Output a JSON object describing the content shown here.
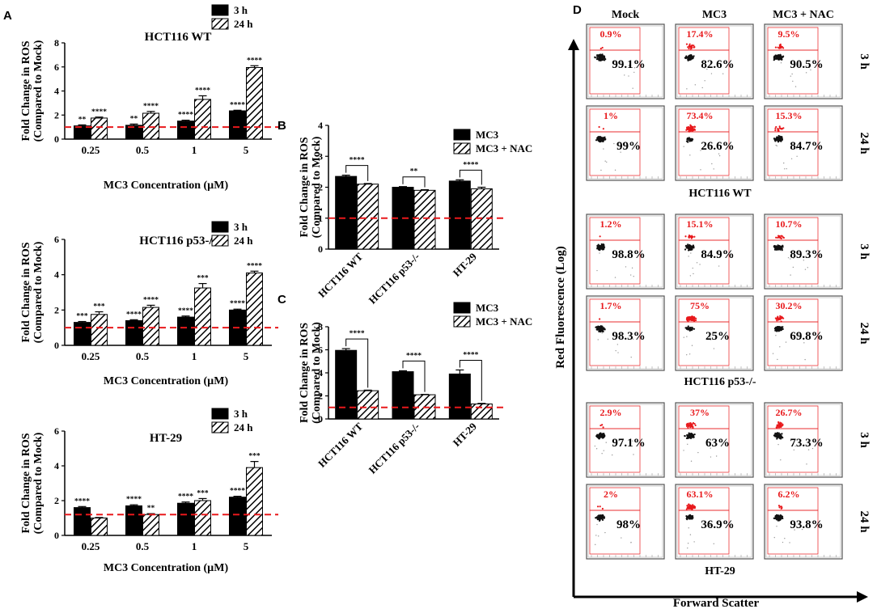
{
  "colors": {
    "red": "#e8191c",
    "dot": "#111111",
    "gate": "#e8191c"
  },
  "panel_labels": {
    "a": "A",
    "b": "B",
    "c": "C",
    "d": "D"
  },
  "chart_data": [
    {
      "id": "A1",
      "type": "bar",
      "title": "HCT116 WT",
      "ylabel": [
        "Fold Change in ROS",
        "(Compared to Mock)"
      ],
      "xlabel": "MC3 Concentration (µM)",
      "categories": [
        "0.25",
        "0.5",
        "1",
        "5"
      ],
      "ylim": [
        0,
        8
      ],
      "yticks": [
        0,
        2,
        4,
        6,
        8
      ],
      "reference_line": 1,
      "series": [
        {
          "name": "3 h",
          "pattern": "solid",
          "values": [
            1.1,
            1.15,
            1.5,
            2.35
          ],
          "errors": [
            0.08,
            0.1,
            0.07,
            0.05
          ],
          "stars": [
            "**",
            "**",
            "****",
            "****"
          ]
        },
        {
          "name": "24 h",
          "pattern": "hatch",
          "values": [
            1.75,
            2.15,
            3.3,
            5.95
          ],
          "errors": [
            0.08,
            0.15,
            0.3,
            0.15
          ],
          "stars": [
            "****",
            "****",
            "****",
            "****"
          ]
        }
      ]
    },
    {
      "id": "A2",
      "type": "bar",
      "title": "HCT116 p53-/-",
      "ylabel": [
        "Fold Change in ROS",
        "(Compared to Mock)"
      ],
      "xlabel": "MC3 Concentration (µM)",
      "categories": [
        "0.25",
        "0.5",
        "1",
        "5"
      ],
      "ylim": [
        0,
        6
      ],
      "yticks": [
        0,
        2,
        4,
        6
      ],
      "reference_line": 1,
      "series": [
        {
          "name": "3 h",
          "pattern": "solid",
          "values": [
            1.3,
            1.4,
            1.6,
            2.0
          ],
          "errors": [
            0.05,
            0.05,
            0.06,
            0.05
          ],
          "stars": [
            "***",
            "****",
            "****",
            "****"
          ]
        },
        {
          "name": "24 h",
          "pattern": "hatch",
          "values": [
            1.75,
            2.15,
            3.25,
            4.1
          ],
          "errors": [
            0.15,
            0.12,
            0.25,
            0.1
          ],
          "stars": [
            "***",
            "****",
            "***",
            "****"
          ]
        }
      ]
    },
    {
      "id": "A3",
      "type": "bar",
      "title": "HT-29",
      "ylabel": [
        "Fold Change in ROS",
        "(Compared to Mock)"
      ],
      "xlabel": "MC3 Concentration (µM)",
      "categories": [
        "0.25",
        "0.5",
        "1",
        "5"
      ],
      "ylim": [
        0,
        6
      ],
      "yticks": [
        0,
        2,
        4,
        6
      ],
      "reference_line": 1.2,
      "series": [
        {
          "name": "3 h",
          "pattern": "solid",
          "values": [
            1.6,
            1.7,
            1.85,
            2.2
          ],
          "errors": [
            0.06,
            0.06,
            0.07,
            0.05
          ],
          "stars": [
            "****",
            "****",
            "****",
            "****"
          ]
        },
        {
          "name": "24 h",
          "pattern": "hatch",
          "values": [
            1.0,
            1.2,
            2.0,
            3.9
          ],
          "errors": [
            0.03,
            0.05,
            0.12,
            0.35
          ],
          "stars": [
            "",
            "**",
            "***",
            "***"
          ]
        }
      ]
    },
    {
      "id": "B",
      "type": "bar",
      "title": "",
      "ylabel": [
        "Fold Change in ROS",
        "(Compared to Mock)"
      ],
      "xlabel": "",
      "categories": [
        "HCT116 WT",
        "HCT116 p53-/-",
        "HT-29"
      ],
      "ylim": [
        0,
        4
      ],
      "yticks": [
        0,
        1,
        2,
        3,
        4
      ],
      "reference_line": 1,
      "series": [
        {
          "name": "MC3",
          "pattern": "solid",
          "values": [
            2.35,
            2.0,
            2.2
          ],
          "errors": [
            0.04,
            0.02,
            0.04
          ]
        },
        {
          "name": "MC3 + NAC",
          "pattern": "hatch",
          "values": [
            2.1,
            1.9,
            1.95
          ],
          "errors": [
            0.02,
            0.02,
            0.05
          ]
        }
      ],
      "brackets": [
        "****",
        "**",
        "****"
      ]
    },
    {
      "id": "C",
      "type": "bar",
      "title": "",
      "ylabel": [
        "Fold Change in ROS",
        "(Compared to Mock)"
      ],
      "xlabel": "",
      "categories": [
        "HCT116 WT",
        "HCT116 p53-/-",
        "HT-29"
      ],
      "ylim": [
        0,
        8
      ],
      "yticks": [
        0,
        2,
        4,
        6,
        8
      ],
      "reference_line": 1,
      "series": [
        {
          "name": "MC3",
          "pattern": "solid",
          "values": [
            5.95,
            4.1,
            3.9
          ],
          "errors": [
            0.15,
            0.08,
            0.35
          ]
        },
        {
          "name": "MC3 + NAC",
          "pattern": "hatch",
          "values": [
            2.45,
            2.1,
            1.3
          ],
          "errors": [
            0.05,
            0.03,
            0.05
          ]
        }
      ],
      "brackets": [
        "****",
        "****",
        "****"
      ]
    }
  ],
  "flow": {
    "columns": [
      "Mock",
      "MC3",
      "MC3 + NAC"
    ],
    "x_axis": "Forward Scatter",
    "y_axis": "Red Fluorescence (Log)",
    "groups": [
      {
        "name": "HCT116 WT",
        "rows": [
          {
            "time": "3 h",
            "cells": [
              {
                "red": "0.9%",
                "black": "99.1%"
              },
              {
                "red": "17.4%",
                "black": "82.6%"
              },
              {
                "red": "9.5%",
                "black": "90.5%"
              }
            ]
          },
          {
            "time": "24 h",
            "cells": [
              {
                "red": "1%",
                "black": "99%"
              },
              {
                "red": "73.4%",
                "black": "26.6%"
              },
              {
                "red": "15.3%",
                "black": "84.7%"
              }
            ]
          }
        ]
      },
      {
        "name": "HCT116 p53-/-",
        "rows": [
          {
            "time": "3 h",
            "cells": [
              {
                "red": "1.2%",
                "black": "98.8%"
              },
              {
                "red": "15.1%",
                "black": "84.9%"
              },
              {
                "red": "10.7%",
                "black": "89.3%"
              }
            ]
          },
          {
            "time": "24 h",
            "cells": [
              {
                "red": "1.7%",
                "black": "98.3%"
              },
              {
                "red": "75%",
                "black": "25%"
              },
              {
                "red": "30.2%",
                "black": "69.8%"
              }
            ]
          }
        ]
      },
      {
        "name": "HT-29",
        "rows": [
          {
            "time": "3 h",
            "cells": [
              {
                "red": "2.9%",
                "black": "97.1%"
              },
              {
                "red": "37%",
                "black": "63%"
              },
              {
                "red": "26.7%",
                "black": "73.3%"
              }
            ]
          },
          {
            "time": "24 h",
            "cells": [
              {
                "red": "2%",
                "black": "98%"
              },
              {
                "red": "63.1%",
                "black": "36.9%"
              },
              {
                "red": "6.2%",
                "black": "93.8%"
              }
            ]
          }
        ]
      }
    ]
  }
}
